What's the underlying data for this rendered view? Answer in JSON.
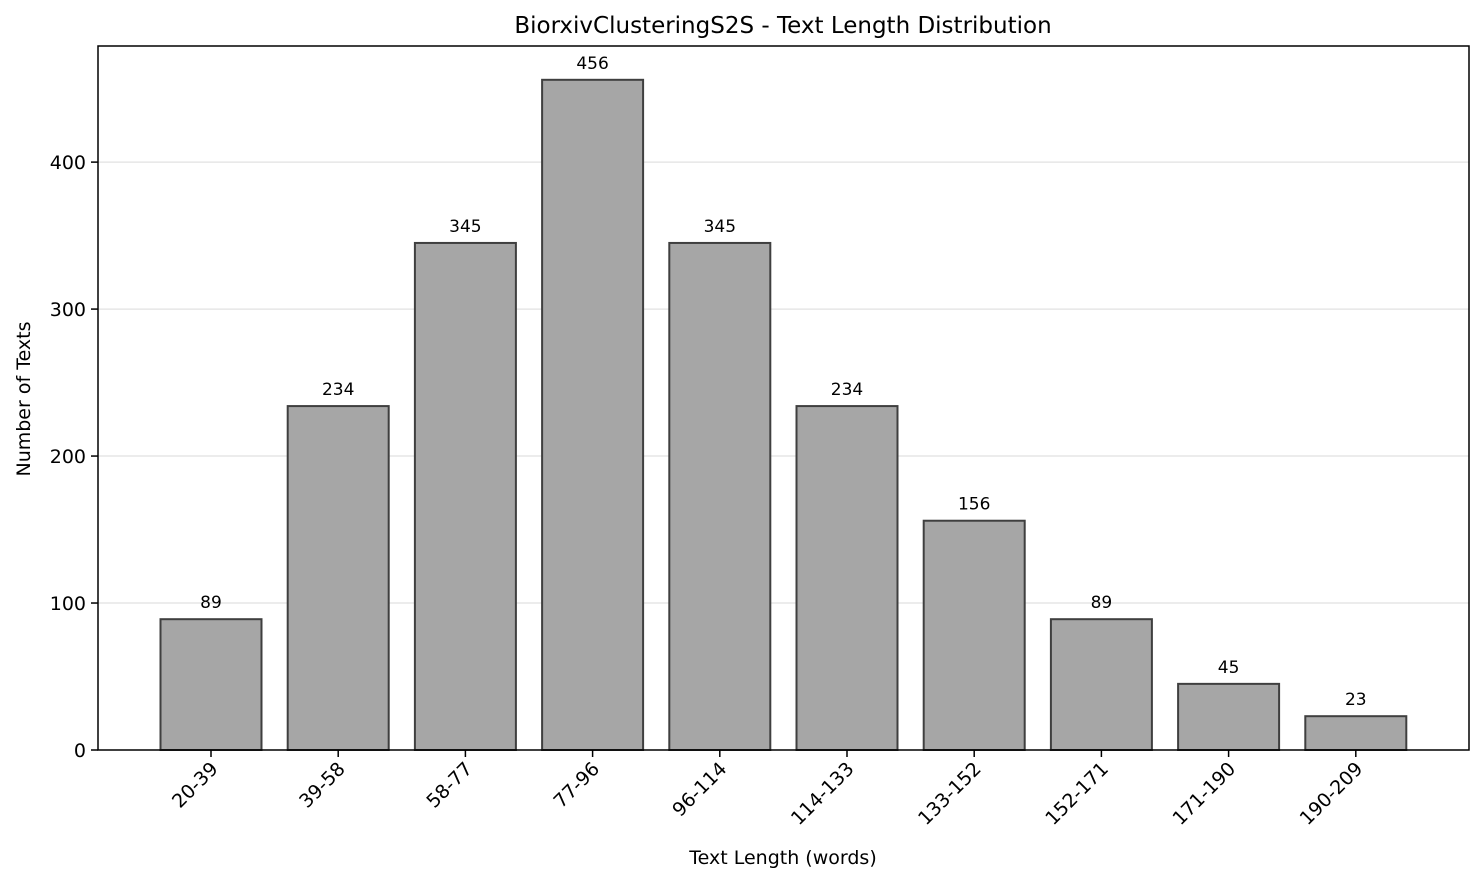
{
  "chart_data": {
    "type": "bar",
    "title": "BiorxivClusteringS2S - Text Length Distribution",
    "xlabel": "Text Length (words)",
    "ylabel": "Number of Texts",
    "categories": [
      "20-39",
      "39-58",
      "58-77",
      "77-96",
      "96-114",
      "114-133",
      "133-152",
      "152-171",
      "171-190",
      "190-209"
    ],
    "values": [
      89,
      234,
      345,
      456,
      345,
      234,
      156,
      89,
      45,
      23
    ],
    "data_labels": [
      "89",
      "234",
      "345",
      "456",
      "345",
      "234",
      "156",
      "89",
      "45",
      "23"
    ],
    "ylim": [
      0,
      479
    ],
    "yticks": [
      0,
      100,
      200,
      300,
      400
    ],
    "ytick_labels": [
      "0",
      "100",
      "200",
      "300",
      "400"
    ],
    "grid": "y-axis only",
    "legend": "none",
    "colors": {
      "bar_fill": "#a6a6a6",
      "bar_edge": "#3f3f3f",
      "grid": "#e6e6e6",
      "axis": "#000000"
    }
  }
}
